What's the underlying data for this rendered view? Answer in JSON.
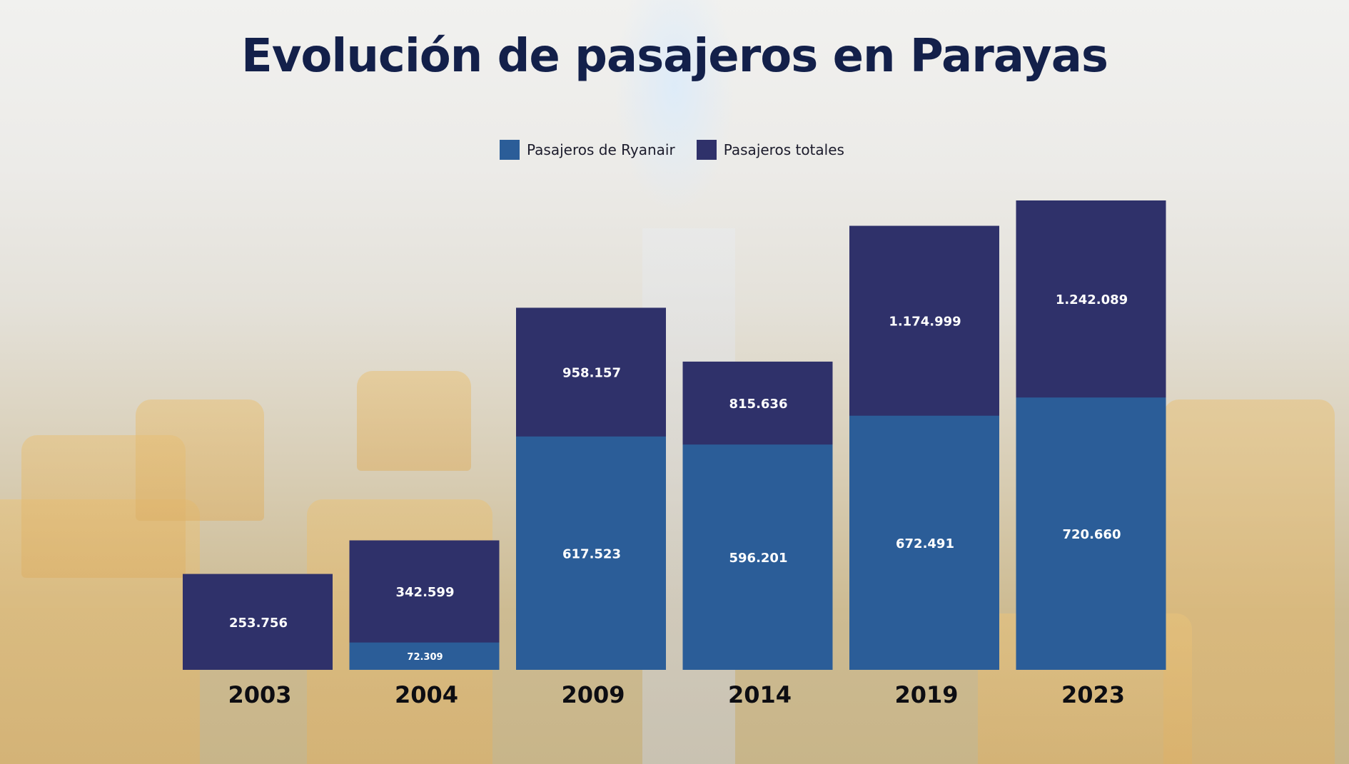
{
  "title": "Evolución de pasajeros en Parayas",
  "colors": {
    "ryanair": "#2b5d98",
    "total": "#2f316a",
    "title": "#13204a"
  },
  "chart_data": {
    "type": "bar",
    "stacked": true,
    "categories": [
      "2003",
      "2004",
      "2009",
      "2014",
      "2019",
      "2023"
    ],
    "series": [
      {
        "name": "Pasajeros de Ryanair",
        "values": [
          0,
          72309,
          617523,
          596201,
          672491,
          720660
        ],
        "labels": [
          "",
          "72.309",
          "617.523",
          "596.201",
          "672.491",
          "720.660"
        ]
      },
      {
        "name": "Pasajeros totales",
        "values": [
          253756,
          342599,
          958157,
          815636,
          1174999,
          1242089
        ],
        "labels": [
          "253.756",
          "342.599",
          "958.157",
          "815.636",
          "1.174.999",
          "1.242.089"
        ]
      }
    ],
    "legend": "top-center",
    "grid": false
  }
}
